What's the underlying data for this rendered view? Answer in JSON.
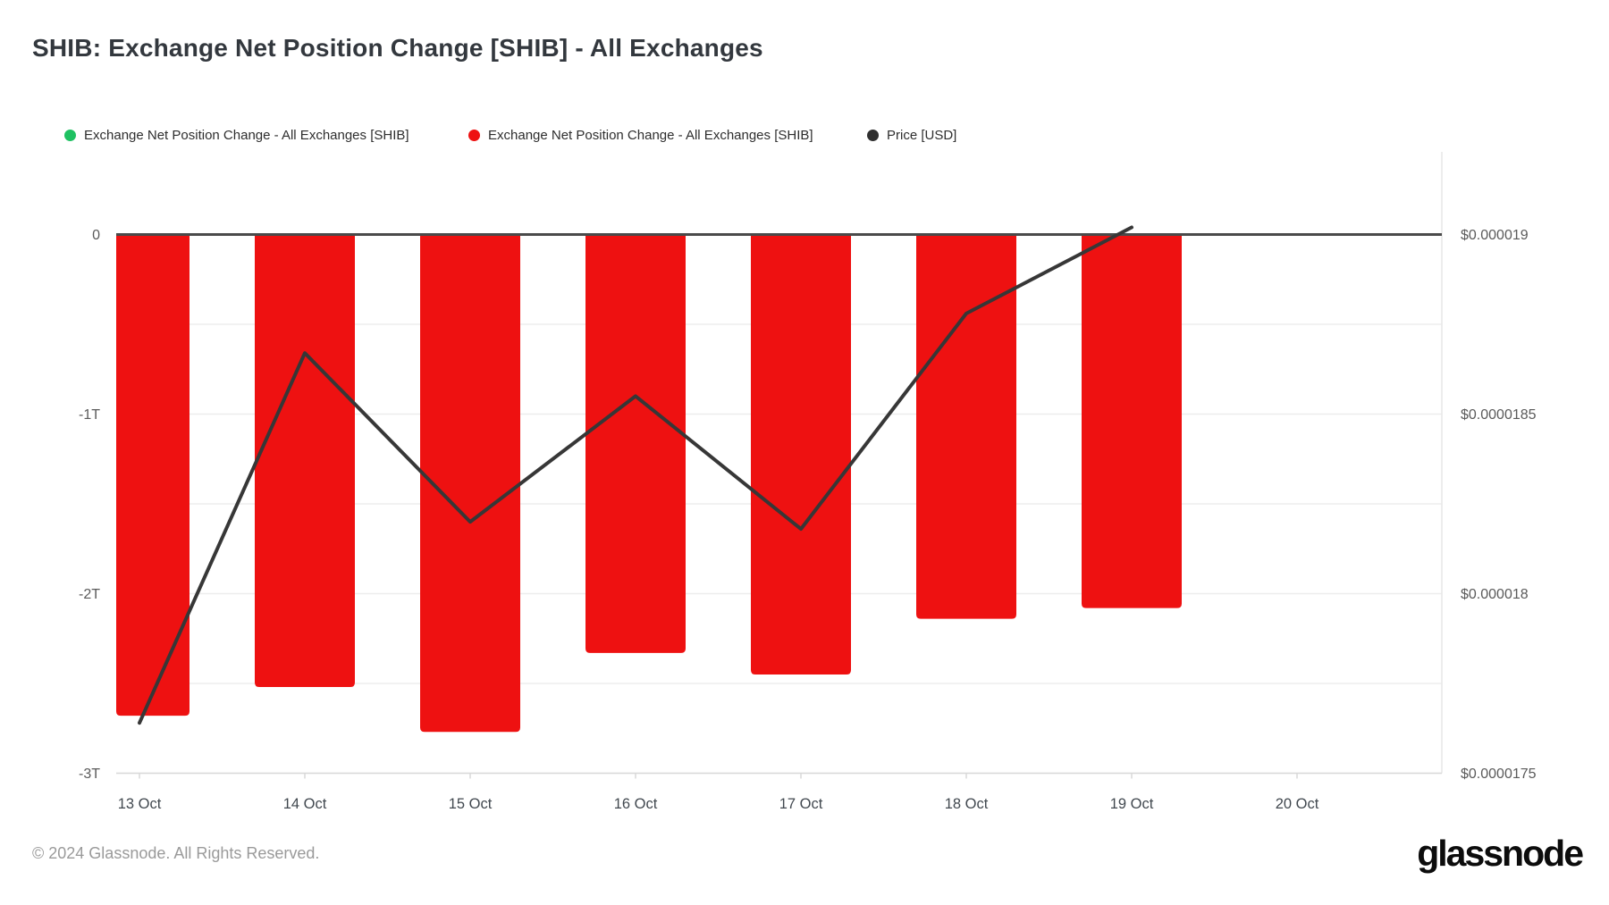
{
  "header": {
    "title": "SHIB: Exchange Net Position Change [SHIB] - All Exchanges"
  },
  "legend": [
    {
      "label": "Exchange Net Position Change - All Exchanges [SHIB]",
      "color": "#1fc162"
    },
    {
      "label": "Exchange Net Position Change - All Exchanges [SHIB]",
      "color": "#ee1111"
    },
    {
      "label": "Price [USD]",
      "color": "#2f2f2f"
    }
  ],
  "chart_data": {
    "type": "bar",
    "categories": [
      "13 Oct",
      "14 Oct",
      "15 Oct",
      "16 Oct",
      "17 Oct",
      "18 Oct",
      "19 Oct",
      "20 Oct"
    ],
    "series": [
      {
        "name": "Exchange Net Position Change - All Exchanges [SHIB]",
        "type": "bar",
        "axis": "left",
        "color": "#ee1111",
        "values": [
          -2.68,
          -2.52,
          -2.77,
          -2.33,
          -2.45,
          -2.14,
          -2.08,
          null
        ]
      },
      {
        "name": "Price [USD]",
        "type": "line",
        "axis": "right",
        "color": "#373737",
        "values": [
          1.764e-05,
          1.867e-05,
          1.82e-05,
          1.855e-05,
          1.818e-05,
          1.878e-05,
          1.902e-05,
          null
        ]
      }
    ],
    "left_axis": {
      "ticks": [
        {
          "label": "0",
          "value": 0
        },
        {
          "label": "-1T",
          "value": -1
        },
        {
          "label": "-2T",
          "value": -2
        },
        {
          "label": "-3T",
          "value": -3
        }
      ],
      "range": [
        -3.0,
        0.47
      ]
    },
    "right_axis": {
      "ticks": [
        {
          "label": "$0.000019",
          "value": 1.9e-05
        },
        {
          "label": "$0.0000185",
          "value": 1.85e-05
        },
        {
          "label": "$0.000018",
          "value": 1.8e-05
        },
        {
          "label": "$0.0000175",
          "value": 1.75e-05
        }
      ]
    },
    "gridlines_t": [
      -0.5,
      -1,
      -1.5,
      -2,
      -2.5,
      -3
    ],
    "grid": "horizontal-only",
    "legend_position": "top-left",
    "title": "SHIB: Exchange Net Position Change [SHIB] - All Exchanges"
  },
  "footer": {
    "copyright": "© 2024 Glassnode. All Rights Reserved.",
    "brand": "glassnode"
  }
}
